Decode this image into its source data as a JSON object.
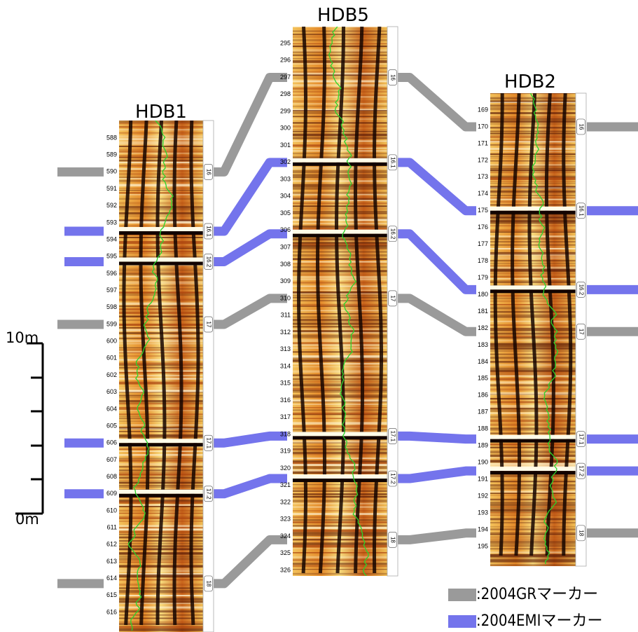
{
  "wells": [
    {
      "name": "HDB1",
      "depths": [
        588,
        589,
        590,
        591,
        592,
        593,
        594,
        595,
        596,
        597,
        598,
        599,
        600,
        601,
        602,
        603,
        604,
        605,
        606,
        607,
        608,
        609,
        610,
        611,
        612,
        613,
        614,
        615,
        616
      ],
      "markers": [
        {
          "label": "16",
          "kind": "GR",
          "depth": 590
        },
        {
          "label": "16.1",
          "kind": "EMI",
          "depth": 593.5
        },
        {
          "label": "16.2",
          "kind": "EMI",
          "depth": 595.3
        },
        {
          "label": "17",
          "kind": "GR",
          "depth": 599
        },
        {
          "label": "17.1",
          "kind": "EMI",
          "depth": 606
        },
        {
          "label": "17.2",
          "kind": "EMI",
          "depth": 609
        },
        {
          "label": "18",
          "kind": "GR",
          "depth": 614.3
        }
      ]
    },
    {
      "name": "HDB5",
      "depths": [
        295,
        296,
        297,
        298,
        299,
        300,
        301,
        302,
        303,
        304,
        305,
        306,
        307,
        308,
        309,
        310,
        311,
        312,
        313,
        314,
        315,
        316,
        317,
        318,
        319,
        320,
        321,
        322,
        323,
        324,
        325,
        326
      ],
      "markers": [
        {
          "label": "16",
          "kind": "GR",
          "depth": 297
        },
        {
          "label": "16.1",
          "kind": "EMI",
          "depth": 302
        },
        {
          "label": "16.2",
          "kind": "EMI",
          "depth": 306.2
        },
        {
          "label": "17",
          "kind": "GR",
          "depth": 310
        },
        {
          "label": "17.1",
          "kind": "EMI",
          "depth": 318.1
        },
        {
          "label": "17.2",
          "kind": "EMI",
          "depth": 320.6
        },
        {
          "label": "18",
          "kind": "GR",
          "depth": 324.2
        }
      ]
    },
    {
      "name": "HDB2",
      "depths": [
        169,
        170,
        171,
        172,
        173,
        174,
        175,
        176,
        177,
        178,
        179,
        180,
        181,
        182,
        183,
        184,
        185,
        186,
        187,
        188,
        189,
        190,
        191,
        192,
        193,
        194,
        195
      ],
      "markers": [
        {
          "label": "16",
          "kind": "GR",
          "depth": 170
        },
        {
          "label": "16.1",
          "kind": "EMI",
          "depth": 175
        },
        {
          "label": "16.2",
          "kind": "EMI",
          "depth": 179.7
        },
        {
          "label": "17",
          "kind": "GR",
          "depth": 182.2
        },
        {
          "label": "17.1",
          "kind": "EMI",
          "depth": 188.6
        },
        {
          "label": "17.2",
          "kind": "EMI",
          "depth": 190.5
        },
        {
          "label": "18",
          "kind": "GR",
          "depth": 194.2
        }
      ]
    }
  ],
  "scale": {
    "top": "10m",
    "bottom": "0m"
  },
  "legend": [
    {
      "kind": "GR",
      "label": ":2004GRマーカー",
      "color": "#9a9a9a"
    },
    {
      "kind": "EMI",
      "label": ":2004EMIマーカー",
      "color": "#7474ec"
    }
  ]
}
